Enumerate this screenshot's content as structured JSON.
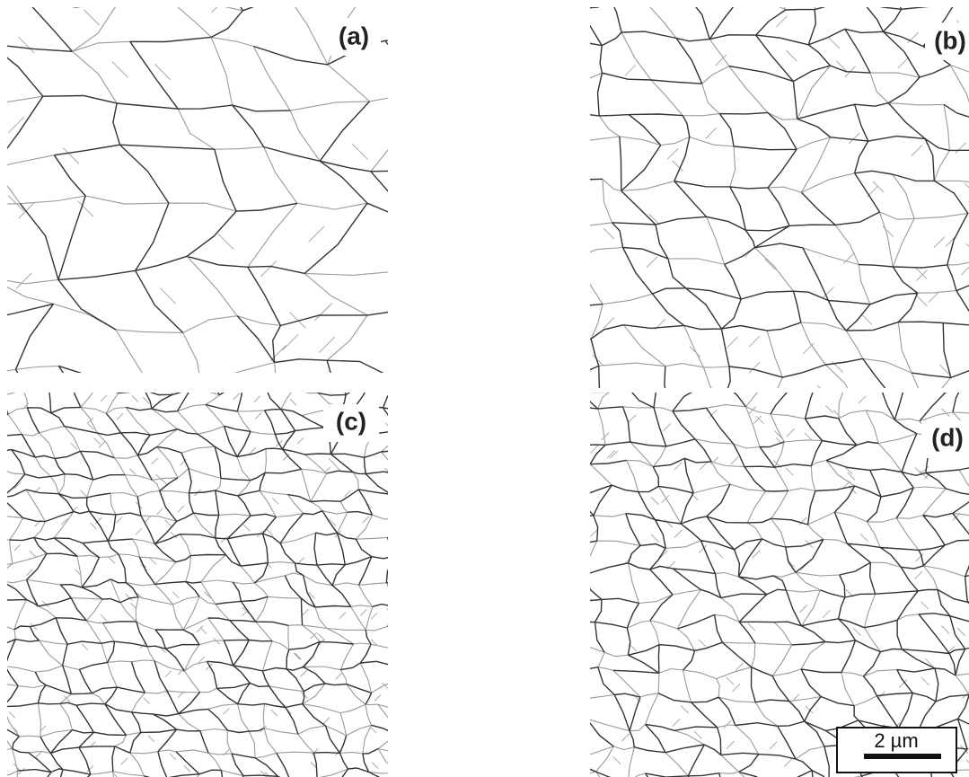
{
  "panels": [
    {
      "label": "(a)"
    },
    {
      "label": "(b)"
    },
    {
      "label": "(c)"
    },
    {
      "label": "(d)"
    }
  ],
  "scale_bar": {
    "label": "2 µm"
  }
}
